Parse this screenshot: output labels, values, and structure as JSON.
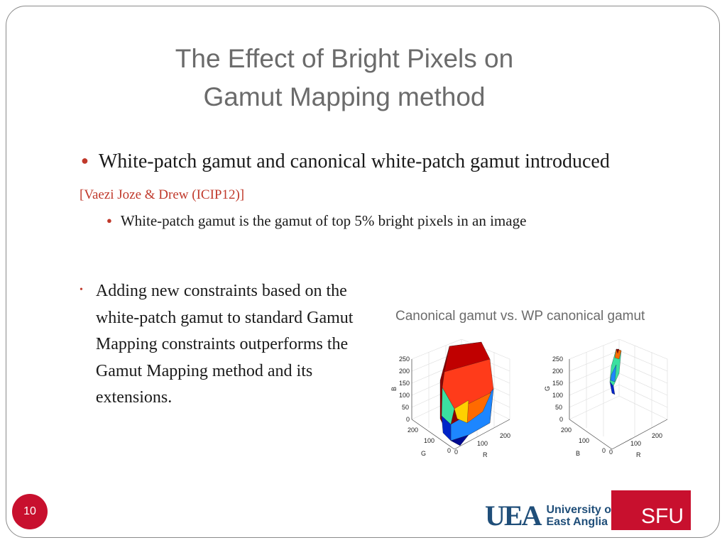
{
  "slide": {
    "title_line1": "The Effect of Bright Pixels on",
    "title_line2": "Gamut Mapping method",
    "bullet1": "White-patch gamut and canonical white-patch gamut introduced",
    "reference": "[Vaezi Joze & Drew (ICIP12)]",
    "subbullet1": "White-patch gamut is the gamut of top 5% bright pixels in an image",
    "bullet2": "Adding new constraints based on the white-patch gamut to standard Gamut Mapping constraints outperforms the Gamut Mapping method and its extensions.",
    "page_number": "10"
  },
  "figure": {
    "caption": "Canonical gamut vs. WP canonical gamut",
    "left_plot": {
      "z_ticks": [
        "250",
        "200",
        "150",
        "100",
        "50",
        "0"
      ],
      "z_label": "B",
      "g_ticks": [
        "200",
        "100",
        "0"
      ],
      "g_label": "G",
      "r_ticks": [
        "0",
        "100",
        "200"
      ],
      "r_label": "R"
    },
    "right_plot": {
      "z_ticks": [
        "250",
        "200",
        "150",
        "100",
        "50",
        "0"
      ],
      "z_label": "G",
      "b_ticks": [
        "200",
        "100",
        "0"
      ],
      "b_label": "B",
      "r_ticks": [
        "0",
        "100",
        "200"
      ],
      "r_label": "R"
    }
  },
  "logos": {
    "uea_mark": "UEA",
    "uea_line1": "University of",
    "uea_line2": "East Anglia",
    "sfu": "SFU"
  },
  "colors": {
    "accent": "#c8102e",
    "title": "#6b6b6b",
    "uea_blue": "#1f4e79"
  }
}
